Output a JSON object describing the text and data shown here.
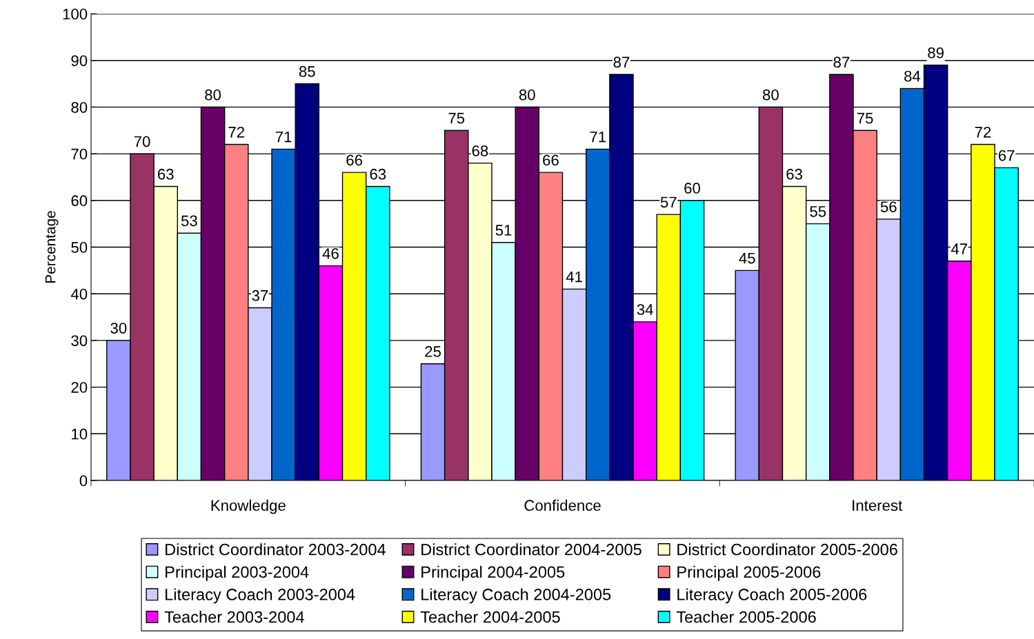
{
  "chart_data": {
    "type": "bar",
    "ylabel": "Percentage",
    "categories": [
      "Knowledge",
      "Confidence",
      "Interest"
    ],
    "ylim": [
      0,
      100
    ],
    "yticks": [
      0,
      10,
      20,
      30,
      40,
      50,
      60,
      70,
      80,
      90,
      100
    ],
    "grid": "y",
    "legend": "bottom",
    "data_labels": true,
    "series": [
      {
        "name": "District Coordinator 2003-2004",
        "color": "#9999ff",
        "values": [
          30,
          25,
          45
        ]
      },
      {
        "name": "District Coordinator 2004-2005",
        "color": "#993366",
        "values": [
          70,
          75,
          80
        ]
      },
      {
        "name": "District Coordinator 2005-2006",
        "color": "#ffffcc",
        "values": [
          63,
          68,
          63
        ]
      },
      {
        "name": "Principal 2003-2004",
        "color": "#ccffff",
        "values": [
          53,
          51,
          55
        ]
      },
      {
        "name": "Principal 2004-2005",
        "color": "#660066",
        "values": [
          80,
          80,
          87
        ]
      },
      {
        "name": "Principal 2005-2006",
        "color": "#ff8080",
        "values": [
          72,
          66,
          75
        ]
      },
      {
        "name": "Literacy Coach 2003-2004",
        "color": "#ccccff",
        "values": [
          37,
          41,
          56
        ]
      },
      {
        "name": "Literacy Coach 2004-2005",
        "color": "#0066cc",
        "values": [
          71,
          71,
          84
        ]
      },
      {
        "name": "Literacy Coach 2005-2006",
        "color": "#000080",
        "values": [
          85,
          87,
          89
        ]
      },
      {
        "name": "Teacher 2003-2004",
        "color": "#ff00ff",
        "values": [
          46,
          34,
          47
        ]
      },
      {
        "name": "Teacher 2004-2005",
        "color": "#ffff00",
        "values": [
          66,
          57,
          72
        ]
      },
      {
        "name": "Teacher 2005-2006",
        "color": "#00ffff",
        "values": [
          63,
          60,
          67
        ]
      }
    ]
  }
}
